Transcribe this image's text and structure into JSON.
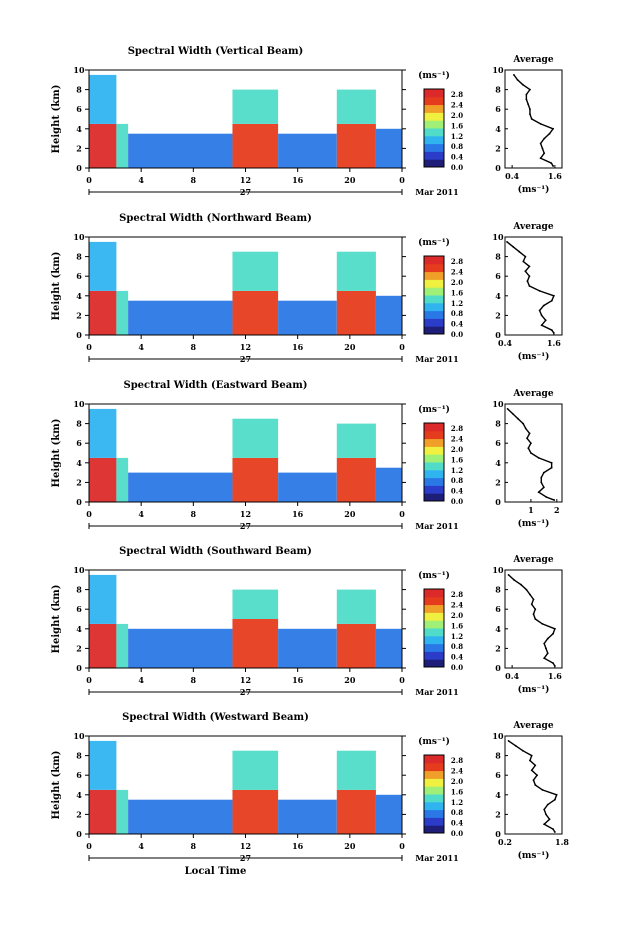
{
  "chart_data": [
    {
      "type": "heatmap",
      "title": "Spectral Width (Vertical Beam)",
      "ylabel": "Height (km)",
      "y_ticks": [
        "0",
        "2",
        "4",
        "6",
        "8",
        "10"
      ],
      "x_ticks": [
        "0",
        "4",
        "8",
        "12",
        "16",
        "20",
        "0"
      ],
      "date_label": "27",
      "month_label": "Mar 2011",
      "ylim": [
        0,
        10
      ],
      "xlim": [
        0,
        24
      ],
      "colorbar_unit": "(ms⁻¹)",
      "colorbar_ticks": [
        "0.0",
        "0.4",
        "0.8",
        "1.2",
        "1.6",
        "2.0",
        "2.4",
        "2.8"
      ],
      "colorbar_range": [
        0.0,
        3.0
      ],
      "bands": [
        {
          "t": [
            0,
            2.1
          ],
          "h": [
            0,
            4.5
          ],
          "level": 2.7
        },
        {
          "t": [
            0,
            2.1
          ],
          "h": [
            4.5,
            9.5
          ],
          "level": 0.9
        },
        {
          "t": [
            2.1,
            3
          ],
          "h": [
            0,
            4.5
          ],
          "level": 1.4
        },
        {
          "t": [
            3,
            11
          ],
          "h": [
            0,
            3.5
          ],
          "level": 0.7
        },
        {
          "t": [
            11,
            14.5
          ],
          "h": [
            0,
            4.5
          ],
          "level": 2.6
        },
        {
          "t": [
            11,
            14.5
          ],
          "h": [
            4.5,
            8
          ],
          "level": 1.4
        },
        {
          "t": [
            14.5,
            19
          ],
          "h": [
            0,
            3.5
          ],
          "level": 0.7
        },
        {
          "t": [
            19,
            22
          ],
          "h": [
            0,
            4.5
          ],
          "level": 2.6
        },
        {
          "t": [
            19,
            22
          ],
          "h": [
            4.5,
            8
          ],
          "level": 1.4
        },
        {
          "t": [
            22,
            24
          ],
          "h": [
            0,
            4
          ],
          "level": 0.8
        }
      ],
      "profile": {
        "title": "Average",
        "xlabel": "(ms⁻¹)",
        "x_ticks": [
          "0.4",
          "1.6"
        ],
        "x_tick_values": [
          0.4,
          1.6
        ],
        "xlim": [
          0.2,
          1.8
        ],
        "ylim": [
          0,
          10
        ],
        "y_ticks": [
          "0",
          "2",
          "4",
          "6",
          "8",
          "10"
        ],
        "heights": [
          0.2,
          0.5,
          1.0,
          1.5,
          2.0,
          2.5,
          3.0,
          3.5,
          4.0,
          4.5,
          5.0,
          5.5,
          6.0,
          6.5,
          7.0,
          7.5,
          8.0,
          8.5,
          9.0,
          9.5
        ],
        "values": [
          1.55,
          1.5,
          1.2,
          1.3,
          1.25,
          1.2,
          1.3,
          1.45,
          1.55,
          1.2,
          0.95,
          0.9,
          0.9,
          0.85,
          0.8,
          0.8,
          0.9,
          0.7,
          0.55,
          0.45
        ]
      }
    },
    {
      "type": "heatmap",
      "title": "Spectral Width (Northward Beam)",
      "ylabel": "Height (km)",
      "y_ticks": [
        "0",
        "2",
        "4",
        "6",
        "8",
        "10"
      ],
      "x_ticks": [
        "0",
        "4",
        "8",
        "12",
        "16",
        "20",
        "0"
      ],
      "date_label": "27",
      "month_label": "Mar 2011",
      "ylim": [
        0,
        10
      ],
      "xlim": [
        0,
        24
      ],
      "colorbar_unit": "(ms⁻¹)",
      "colorbar_ticks": [
        "0.0",
        "0.4",
        "0.8",
        "1.2",
        "1.6",
        "2.0",
        "2.4",
        "2.8"
      ],
      "colorbar_range": [
        0.0,
        3.0
      ],
      "bands": [
        {
          "t": [
            0,
            2.1
          ],
          "h": [
            0,
            4.5
          ],
          "level": 2.7
        },
        {
          "t": [
            0,
            2.1
          ],
          "h": [
            4.5,
            9.5
          ],
          "level": 0.9
        },
        {
          "t": [
            2.1,
            3
          ],
          "h": [
            0,
            4.5
          ],
          "level": 1.4
        },
        {
          "t": [
            3,
            11
          ],
          "h": [
            0,
            3.5
          ],
          "level": 0.7
        },
        {
          "t": [
            11,
            14.5
          ],
          "h": [
            0,
            4.5
          ],
          "level": 2.6
        },
        {
          "t": [
            11,
            14.5
          ],
          "h": [
            4.5,
            8.5
          ],
          "level": 1.4
        },
        {
          "t": [
            14.5,
            19
          ],
          "h": [
            0,
            3.5
          ],
          "level": 0.7
        },
        {
          "t": [
            19,
            22
          ],
          "h": [
            0,
            4.5
          ],
          "level": 2.6
        },
        {
          "t": [
            19,
            22
          ],
          "h": [
            4.5,
            8.5
          ],
          "level": 1.4
        },
        {
          "t": [
            22,
            24
          ],
          "h": [
            0,
            4
          ],
          "level": 0.8
        }
      ],
      "profile": {
        "title": "Average",
        "xlabel": "(ms⁻¹)",
        "x_ticks": [
          "0.4",
          "1.6"
        ],
        "x_tick_values": [
          0.4,
          1.6
        ],
        "xlim": [
          0.4,
          1.8
        ],
        "ylim": [
          0,
          10
        ],
        "y_ticks": [
          "0",
          "2",
          "4",
          "6",
          "8",
          "10"
        ],
        "heights": [
          0.2,
          0.5,
          1.0,
          1.5,
          2.0,
          2.5,
          3.0,
          3.5,
          4.0,
          4.5,
          5.0,
          5.5,
          6.0,
          6.5,
          7.0,
          7.5,
          8.0,
          8.5,
          9.0,
          9.5
        ],
        "values": [
          1.6,
          1.55,
          1.3,
          1.4,
          1.3,
          1.25,
          1.35,
          1.55,
          1.6,
          1.25,
          1.0,
          0.95,
          1.0,
          0.9,
          1.0,
          0.85,
          0.9,
          0.75,
          0.6,
          0.45
        ]
      }
    },
    {
      "type": "heatmap",
      "title": "Spectral Width (Eastward Beam)",
      "ylabel": "Height (km)",
      "y_ticks": [
        "0",
        "2",
        "4",
        "6",
        "8",
        "10"
      ],
      "x_ticks": [
        "0",
        "4",
        "8",
        "12",
        "16",
        "20",
        "0"
      ],
      "date_label": "27",
      "month_label": "Mar 2011",
      "ylim": [
        0,
        10
      ],
      "xlim": [
        0,
        24
      ],
      "colorbar_unit": "(ms⁻¹)",
      "colorbar_ticks": [
        "0.0",
        "0.4",
        "0.8",
        "1.2",
        "1.6",
        "2.0",
        "2.4",
        "2.8"
      ],
      "colorbar_range": [
        0.0,
        3.0
      ],
      "bands": [
        {
          "t": [
            0,
            2.1
          ],
          "h": [
            0,
            4.5
          ],
          "level": 2.7
        },
        {
          "t": [
            0,
            2.1
          ],
          "h": [
            4.5,
            9.5
          ],
          "level": 0.9
        },
        {
          "t": [
            2.1,
            3
          ],
          "h": [
            0,
            4.5
          ],
          "level": 1.4
        },
        {
          "t": [
            3,
            11
          ],
          "h": [
            0,
            3
          ],
          "level": 0.7
        },
        {
          "t": [
            11,
            14.5
          ],
          "h": [
            0,
            4.5
          ],
          "level": 2.6
        },
        {
          "t": [
            11,
            14.5
          ],
          "h": [
            4.5,
            8.5
          ],
          "level": 1.4
        },
        {
          "t": [
            14.5,
            19
          ],
          "h": [
            0,
            3
          ],
          "level": 0.7
        },
        {
          "t": [
            19,
            22
          ],
          "h": [
            0,
            4.5
          ],
          "level": 2.6
        },
        {
          "t": [
            19,
            22
          ],
          "h": [
            4.5,
            8
          ],
          "level": 1.4
        },
        {
          "t": [
            22,
            24
          ],
          "h": [
            0,
            3.5
          ],
          "level": 0.8
        }
      ],
      "profile": {
        "title": "Average",
        "xlabel": "(ms⁻¹)",
        "x_ticks": [
          "1",
          "2"
        ],
        "x_tick_values": [
          1,
          2
        ],
        "xlim": [
          0.0,
          2.2
        ],
        "ylim": [
          0,
          10
        ],
        "y_ticks": [
          "0",
          "2",
          "4",
          "6",
          "8",
          "10"
        ],
        "heights": [
          0.2,
          0.5,
          1.0,
          1.5,
          2.0,
          2.5,
          3.0,
          3.5,
          4.0,
          4.5,
          5.0,
          5.5,
          6.0,
          6.5,
          7.0,
          7.5,
          8.0,
          8.5,
          9.0,
          9.5
        ],
        "values": [
          1.9,
          1.6,
          1.3,
          1.5,
          1.4,
          1.4,
          1.5,
          1.8,
          1.8,
          1.3,
          1.0,
          0.9,
          1.0,
          0.85,
          0.95,
          0.8,
          0.7,
          0.5,
          0.3,
          0.1
        ]
      }
    },
    {
      "type": "heatmap",
      "title": "Spectral Width (Southward Beam)",
      "ylabel": "Height (km)",
      "y_ticks": [
        "0",
        "2",
        "4",
        "6",
        "8",
        "10"
      ],
      "x_ticks": [
        "0",
        "4",
        "8",
        "12",
        "16",
        "20",
        "0"
      ],
      "date_label": "27",
      "month_label": "Mar 2011",
      "ylim": [
        0,
        10
      ],
      "xlim": [
        0,
        24
      ],
      "colorbar_unit": "(ms⁻¹)",
      "colorbar_ticks": [
        "0.0",
        "0.4",
        "0.8",
        "1.2",
        "1.6",
        "2.0",
        "2.4",
        "2.8"
      ],
      "colorbar_range": [
        0.0,
        3.0
      ],
      "bands": [
        {
          "t": [
            0,
            2.1
          ],
          "h": [
            0,
            4.5
          ],
          "level": 2.7
        },
        {
          "t": [
            0,
            2.1
          ],
          "h": [
            4.5,
            9.5
          ],
          "level": 0.9
        },
        {
          "t": [
            2.1,
            3
          ],
          "h": [
            0,
            4.5
          ],
          "level": 1.4
        },
        {
          "t": [
            3,
            11
          ],
          "h": [
            0,
            4
          ],
          "level": 0.7
        },
        {
          "t": [
            11,
            14.5
          ],
          "h": [
            0,
            5
          ],
          "level": 2.6
        },
        {
          "t": [
            11,
            14.5
          ],
          "h": [
            5,
            8
          ],
          "level": 1.4
        },
        {
          "t": [
            14.5,
            19
          ],
          "h": [
            0,
            4
          ],
          "level": 0.7
        },
        {
          "t": [
            19,
            22
          ],
          "h": [
            0,
            4.5
          ],
          "level": 2.6
        },
        {
          "t": [
            19,
            22
          ],
          "h": [
            4.5,
            8
          ],
          "level": 1.4
        },
        {
          "t": [
            22,
            24
          ],
          "h": [
            0,
            4
          ],
          "level": 0.8
        }
      ],
      "profile": {
        "title": "Average",
        "xlabel": "(ms⁻¹)",
        "x_ticks": [
          "0.4",
          "1.6"
        ],
        "x_tick_values": [
          0.4,
          1.6
        ],
        "xlim": [
          0.2,
          1.8
        ],
        "ylim": [
          0,
          10
        ],
        "y_ticks": [
          "0",
          "2",
          "4",
          "6",
          "8",
          "10"
        ],
        "heights": [
          0.2,
          0.5,
          1.0,
          1.5,
          2.0,
          2.5,
          3.0,
          3.5,
          4.0,
          4.5,
          5.0,
          5.5,
          6.0,
          6.5,
          7.0,
          7.5,
          8.0,
          8.5,
          9.0,
          9.5
        ],
        "values": [
          1.6,
          1.55,
          1.3,
          1.4,
          1.35,
          1.3,
          1.4,
          1.55,
          1.6,
          1.25,
          1.05,
          1.0,
          1.05,
          0.95,
          1.0,
          0.9,
          0.8,
          0.65,
          0.45,
          0.3
        ]
      }
    },
    {
      "type": "heatmap",
      "title": "Spectral Width (Westward Beam)",
      "ylabel": "Height (km)",
      "y_ticks": [
        "0",
        "2",
        "4",
        "6",
        "8",
        "10"
      ],
      "x_ticks": [
        "0",
        "4",
        "8",
        "12",
        "16",
        "20",
        "0"
      ],
      "date_label": "27",
      "month_label": "Mar 2011",
      "xlabel": "Local Time",
      "ylim": [
        0,
        10
      ],
      "xlim": [
        0,
        24
      ],
      "colorbar_unit": "(ms⁻¹)",
      "colorbar_ticks": [
        "0.0",
        "0.4",
        "0.8",
        "1.2",
        "1.6",
        "2.0",
        "2.4",
        "2.8"
      ],
      "colorbar_range": [
        0.0,
        3.0
      ],
      "bands": [
        {
          "t": [
            0,
            2.1
          ],
          "h": [
            0,
            4.5
          ],
          "level": 2.7
        },
        {
          "t": [
            0,
            2.1
          ],
          "h": [
            4.5,
            9.5
          ],
          "level": 0.9
        },
        {
          "t": [
            2.1,
            3
          ],
          "h": [
            0,
            4.5
          ],
          "level": 1.4
        },
        {
          "t": [
            3,
            11
          ],
          "h": [
            0,
            3.5
          ],
          "level": 0.7
        },
        {
          "t": [
            11,
            14.5
          ],
          "h": [
            0,
            4.5
          ],
          "level": 2.6
        },
        {
          "t": [
            11,
            14.5
          ],
          "h": [
            4.5,
            8.5
          ],
          "level": 1.4
        },
        {
          "t": [
            14.5,
            19
          ],
          "h": [
            0,
            3.5
          ],
          "level": 0.7
        },
        {
          "t": [
            19,
            22
          ],
          "h": [
            0,
            4.5
          ],
          "level": 2.6
        },
        {
          "t": [
            19,
            22
          ],
          "h": [
            4.5,
            8.5
          ],
          "level": 1.4
        },
        {
          "t": [
            22,
            24
          ],
          "h": [
            0,
            4
          ],
          "level": 0.8
        }
      ],
      "profile": {
        "title": "Average",
        "xlabel": "(ms⁻¹)",
        "x_ticks": [
          "0.2",
          "1.8"
        ],
        "x_tick_values": [
          0.2,
          1.8
        ],
        "xlim": [
          0.2,
          1.8
        ],
        "ylim": [
          0,
          10
        ],
        "y_ticks": [
          "0",
          "2",
          "4",
          "6",
          "8",
          "10"
        ],
        "heights": [
          0.2,
          0.5,
          1.0,
          1.5,
          2.0,
          2.5,
          3.0,
          3.5,
          4.0,
          4.5,
          5.0,
          5.5,
          6.0,
          6.5,
          7.0,
          7.5,
          8.0,
          8.5,
          9.0,
          9.5
        ],
        "values": [
          1.6,
          1.55,
          1.3,
          1.45,
          1.35,
          1.3,
          1.4,
          1.6,
          1.65,
          1.25,
          1.05,
          1.0,
          1.1,
          0.95,
          1.05,
          0.9,
          0.95,
          0.7,
          0.5,
          0.3
        ]
      }
    }
  ],
  "colors": {
    "colormap": [
      "#1e1e78",
      "#2a3cc8",
      "#2a78e6",
      "#30b4f0",
      "#50dcc8",
      "#a0f078",
      "#f0f040",
      "#f0a028",
      "#e63c1e",
      "#dc2a2a"
    ]
  }
}
